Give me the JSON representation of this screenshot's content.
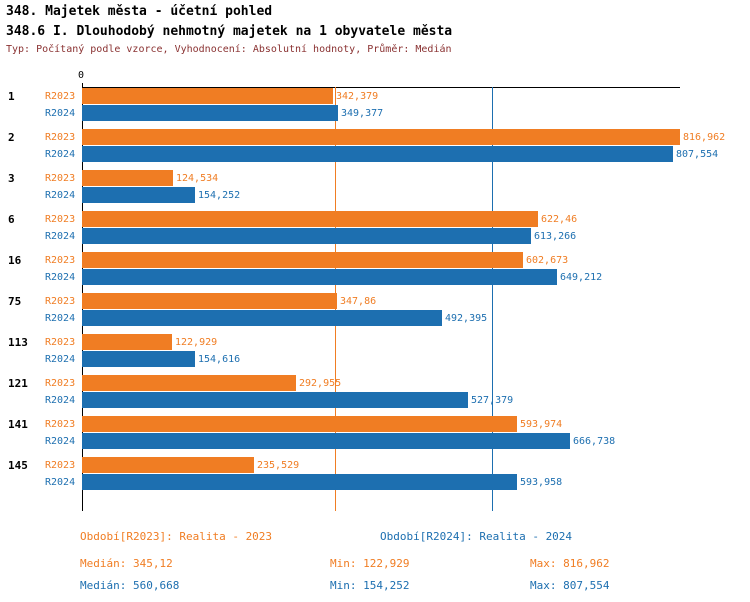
{
  "header": {
    "title_line1": "348. Majetek města - účetní pohled",
    "title_line2": "348.6 I. Dlouhodobý nehmotný majetek na 1 obyvatele města",
    "meta_line": "Typ: Počítaný podle vzorce, Vyhodnocení: Absolutní hodnoty, Průměr: Medián"
  },
  "chart_data": {
    "type": "bar",
    "orientation": "horizontal",
    "title": "348.6 I. Dlouhodobý nehmotný majetek na 1 obyvatele města",
    "xlabel": "",
    "ylabel": "",
    "xlim": [
      0,
      816.962
    ],
    "zero_tick_label": "0",
    "grid": "zero-axis plus median marker lines only",
    "legend_position": "bottom",
    "series": [
      {
        "name": "R2023",
        "legend": "Období[R2023]: Realita - 2023",
        "color": "#F07D23",
        "median": 345.12,
        "min": 122.929,
        "max": 816.962
      },
      {
        "name": "R2024",
        "legend": "Období[R2024]: Realita - 2024",
        "color": "#1D6FB0",
        "median": 560.668,
        "min": 154.252,
        "max": 807.554
      }
    ],
    "categories": [
      "1",
      "2",
      "3",
      "6",
      "16",
      "75",
      "113",
      "121",
      "141",
      "145"
    ],
    "rows": [
      {
        "category": "1",
        "r2023": 342.379,
        "r2023_label": "342,379",
        "r2024": 349.377,
        "r2024_label": "349,377"
      },
      {
        "category": "2",
        "r2023": 816.962,
        "r2023_label": "816,962",
        "r2024": 807.554,
        "r2024_label": "807,554"
      },
      {
        "category": "3",
        "r2023": 124.534,
        "r2023_label": "124,534",
        "r2024": 154.252,
        "r2024_label": "154,252"
      },
      {
        "category": "6",
        "r2023": 622.46,
        "r2023_label": "622,46",
        "r2024": 613.266,
        "r2024_label": "613,266"
      },
      {
        "category": "16",
        "r2023": 602.673,
        "r2023_label": "602,673",
        "r2024": 649.212,
        "r2024_label": "649,212"
      },
      {
        "category": "75",
        "r2023": 347.86,
        "r2023_label": "347,86",
        "r2024": 492.395,
        "r2024_label": "492,395"
      },
      {
        "category": "113",
        "r2023": 122.929,
        "r2023_label": "122,929",
        "r2024": 154.616,
        "r2024_label": "154,616"
      },
      {
        "category": "121",
        "r2023": 292.955,
        "r2023_label": "292,955",
        "r2024": 527.379,
        "r2024_label": "527,379"
      },
      {
        "category": "141",
        "r2023": 593.974,
        "r2023_label": "593,974",
        "r2024": 666.738,
        "r2024_label": "666,738"
      },
      {
        "category": "145",
        "r2023": 235.529,
        "r2023_label": "235,529",
        "r2024": 593.958,
        "r2024_label": "593,958"
      }
    ],
    "median_lines": [
      {
        "series": "R2023",
        "value": 345.12,
        "color": "#F07D23"
      },
      {
        "series": "R2024",
        "value": 560.668,
        "color": "#1D6FB0"
      }
    ]
  },
  "legend": {
    "r2023": "Období[R2023]: Realita - 2023",
    "r2024": "Období[R2024]: Realita - 2024"
  },
  "stats": {
    "r2023": {
      "median": "Medián: 345,12",
      "min": "Min: 122,929",
      "max": "Max: 816,962"
    },
    "r2024": {
      "median": "Medián: 560,668",
      "min": "Min: 154,252",
      "max": "Max: 807,554"
    }
  },
  "colors": {
    "r2023": "#F07D23",
    "r2024": "#1D6FB0",
    "meta_text": "#8A3232",
    "axis": "#000000"
  }
}
